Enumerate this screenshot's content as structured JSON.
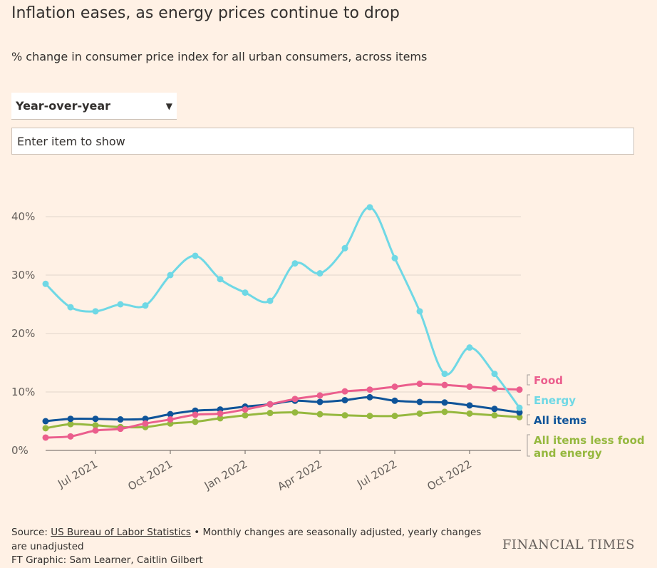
{
  "header": {
    "title": "Inflation eases, as energy prices continue to drop",
    "subtitle": "% change in consumer price index for all urban consumers, across items"
  },
  "controls": {
    "dropdown_value": "Year-over-year",
    "search_placeholder": "Enter item to show"
  },
  "colors": {
    "background": "#fff1e5",
    "food": "#eb5e8d",
    "energy": "#6fd8e5",
    "all_items": "#0f5499",
    "core": "#96b83f"
  },
  "chart_data": {
    "type": "line",
    "x": [
      "May 2021",
      "Jun 2021",
      "Jul 2021",
      "Aug 2021",
      "Sep 2021",
      "Oct 2021",
      "Nov 2021",
      "Dec 2021",
      "Jan 2022",
      "Feb 2022",
      "Mar 2022",
      "Apr 2022",
      "May 2022",
      "Jun 2022",
      "Jul 2022",
      "Aug 2022",
      "Sep 2022",
      "Oct 2022",
      "Nov 2022",
      "Dec 2022"
    ],
    "x_tick_labels": [
      "Jul 2021",
      "Oct 2021",
      "Jan 2022",
      "Apr 2022",
      "Jul 2022",
      "Oct 2022"
    ],
    "x_tick_indices": [
      2,
      5,
      8,
      11,
      14,
      17
    ],
    "y_ticks": [
      0,
      10,
      20,
      30,
      40
    ],
    "y_tick_labels": [
      "0%",
      "10%",
      "20%",
      "30%",
      "40%"
    ],
    "ylim": [
      0,
      45
    ],
    "series": [
      {
        "name": "Energy",
        "key": "energy",
        "values": [
          28.5,
          24.5,
          23.8,
          25.0,
          24.8,
          30.0,
          33.3,
          29.3,
          27.0,
          25.6,
          32.0,
          30.3,
          34.6,
          41.6,
          32.9,
          23.8,
          13.1,
          17.6,
          13.1,
          7.3
        ]
      },
      {
        "name": "Food",
        "key": "food",
        "values": [
          2.2,
          2.4,
          3.4,
          3.7,
          4.6,
          5.3,
          6.1,
          6.3,
          7.0,
          7.9,
          8.8,
          9.4,
          10.1,
          10.4,
          10.9,
          11.4,
          11.2,
          10.9,
          10.6,
          10.4
        ]
      },
      {
        "name": "All items",
        "key": "all_items",
        "values": [
          5.0,
          5.4,
          5.4,
          5.3,
          5.4,
          6.2,
          6.8,
          7.0,
          7.5,
          7.9,
          8.5,
          8.3,
          8.6,
          9.1,
          8.5,
          8.3,
          8.2,
          7.7,
          7.1,
          6.5
        ]
      },
      {
        "name": "All items less food and energy",
        "key": "core",
        "legend_lines": [
          "All items less food",
          "and energy"
        ],
        "values": [
          3.8,
          4.5,
          4.3,
          4.0,
          4.0,
          4.6,
          4.9,
          5.5,
          6.0,
          6.4,
          6.5,
          6.2,
          6.0,
          5.9,
          5.9,
          6.3,
          6.6,
          6.3,
          6.0,
          5.7
        ]
      }
    ]
  },
  "footer": {
    "source_prefix": "Source: ",
    "source_link": "US Bureau of Labor Statistics",
    "source_note": " • Monthly changes are seasonally adjusted, yearly changes are unadjusted",
    "credit": "FT Graphic: Sam Learner, Caitlin Gilbert",
    "brand": "FINANCIAL TIMES"
  }
}
